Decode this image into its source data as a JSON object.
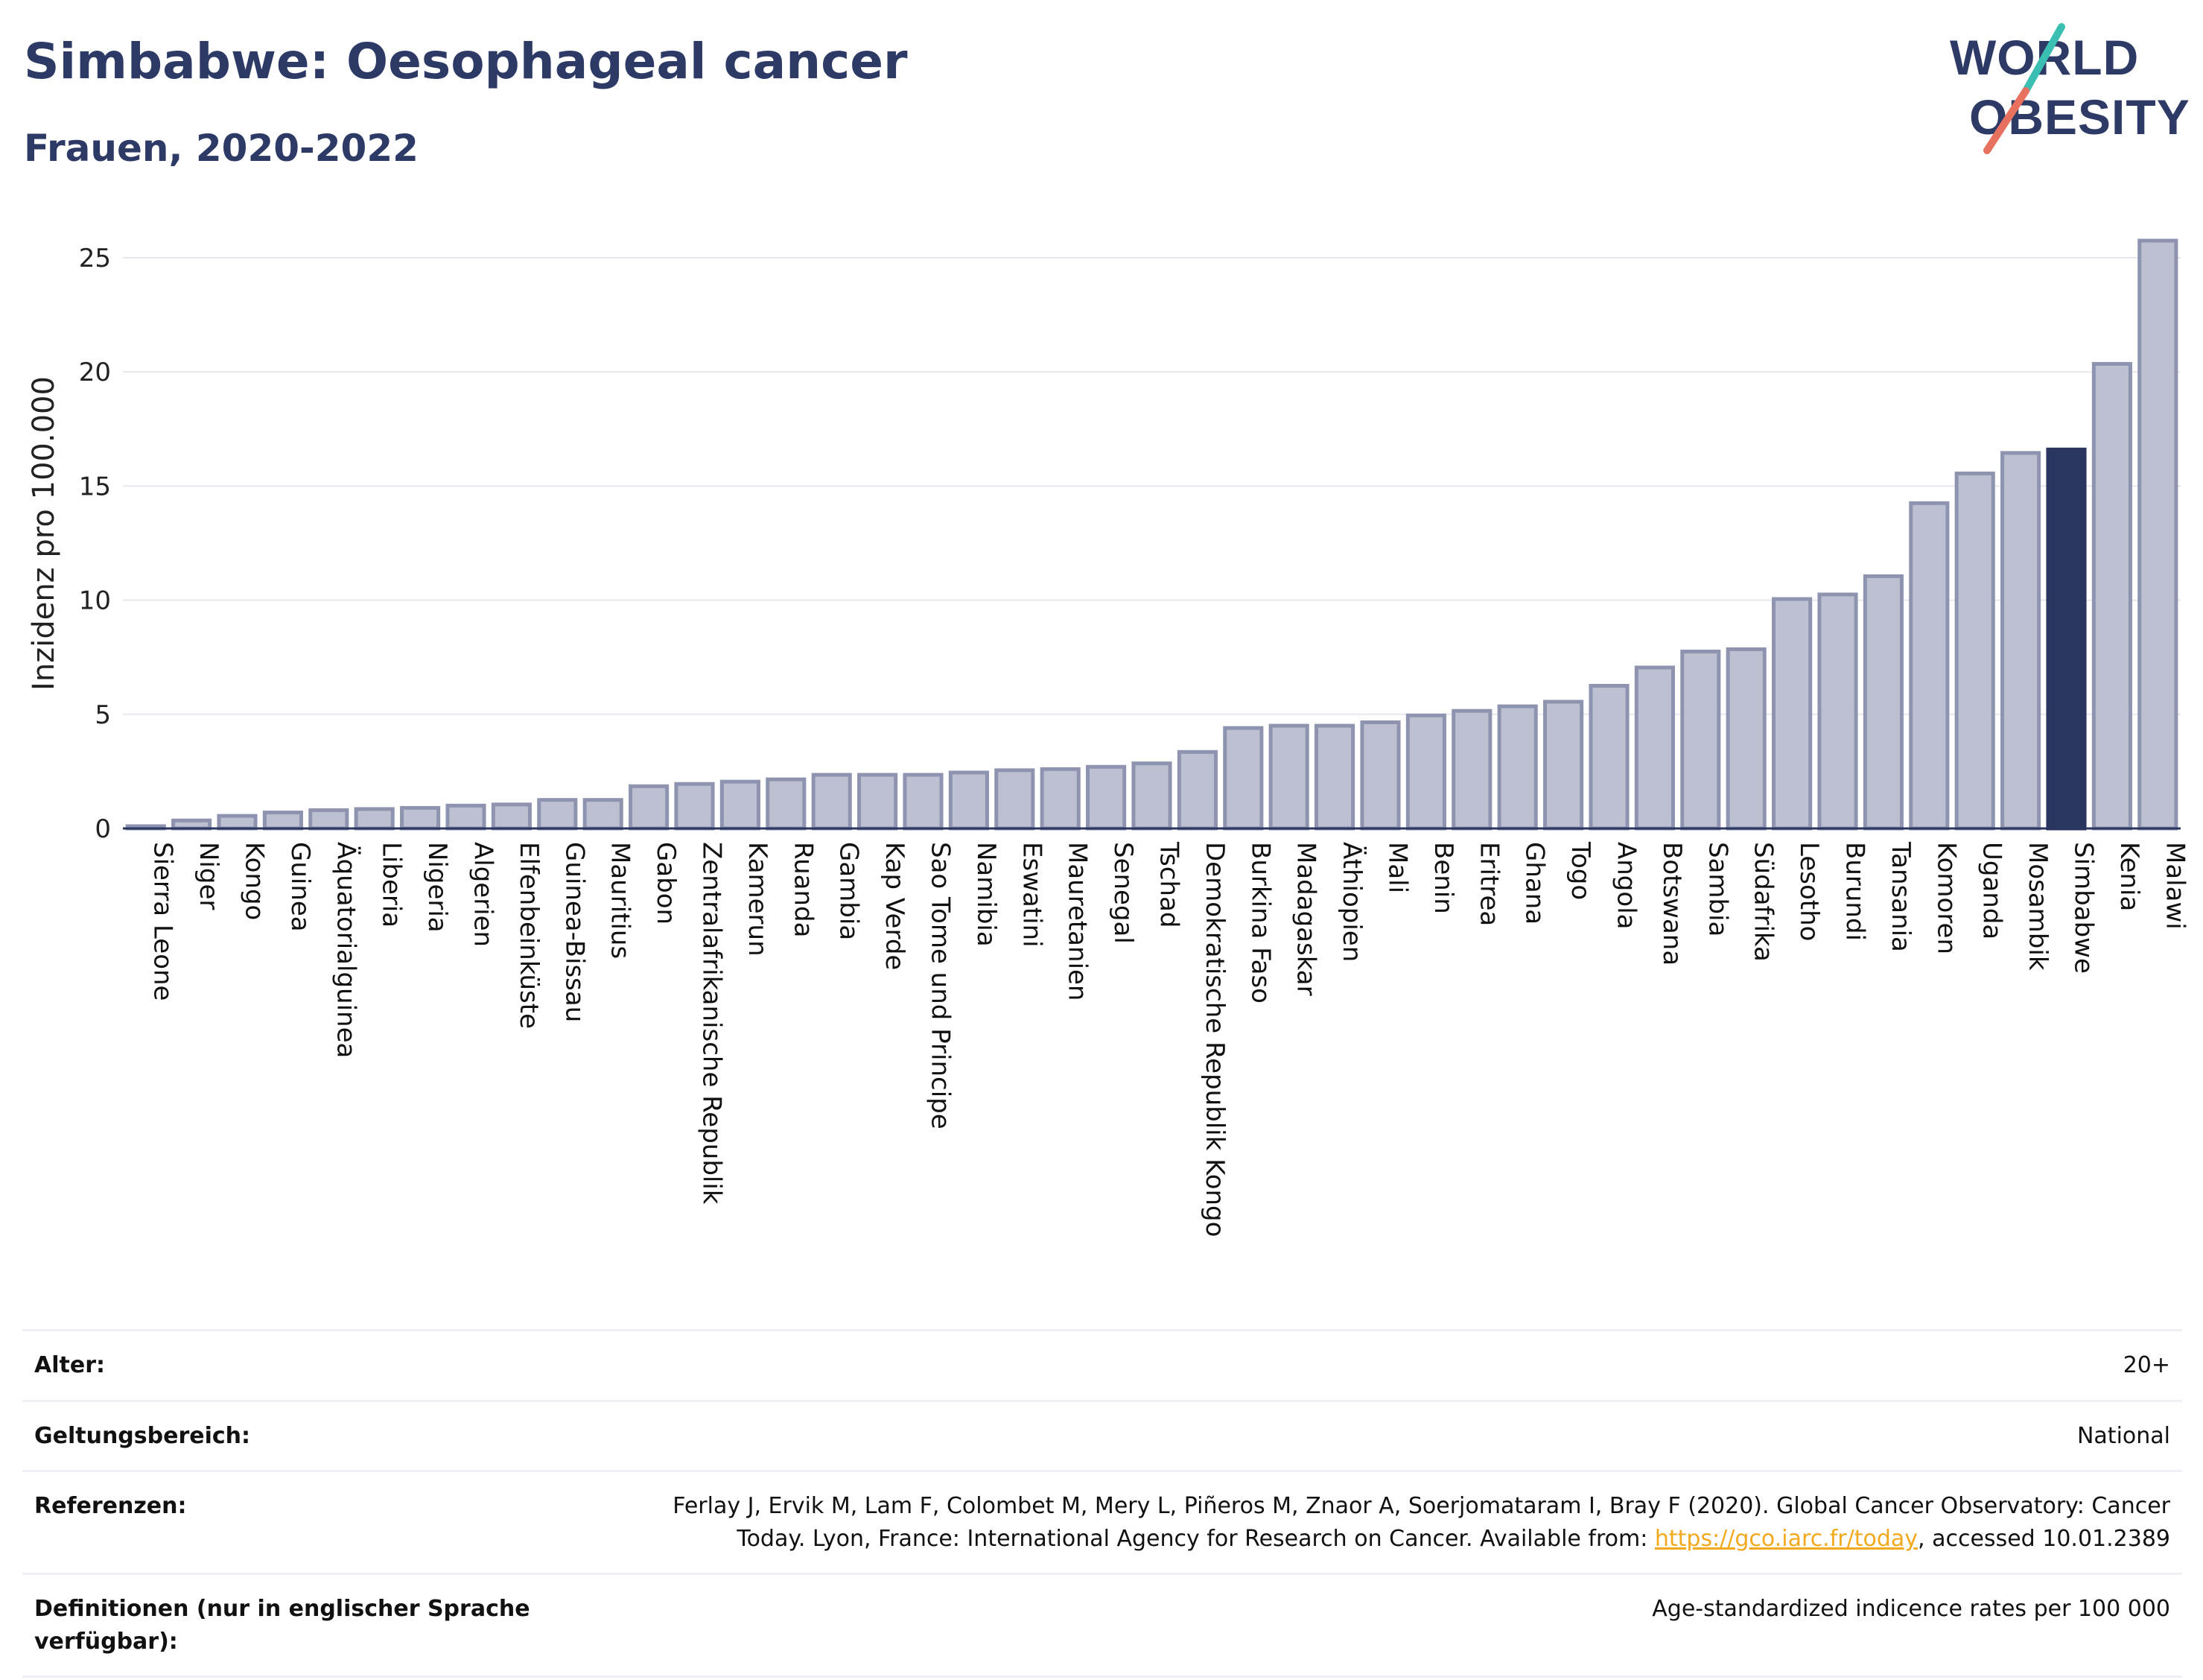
{
  "title": "Simbabwe: Oesophageal cancer",
  "subtitle": "Frauen, 2020-2022",
  "logo": {
    "line1": "WORLD",
    "line2": "OBESITY",
    "colors": {
      "text": "#2d3a66",
      "slash_top": "#3bbfb3",
      "slash_bottom": "#e8705f"
    }
  },
  "colors": {
    "bar_fill": "#bcc0d0",
    "bar_stroke": "#8e94b0",
    "highlight_fill": "#2a3560",
    "grid": "#e6e8ef",
    "axis": "#2a3560"
  },
  "chart_data": {
    "type": "bar",
    "ylabel": "Inzidenz pro 100.000",
    "xlabel": "",
    "ylim": [
      0,
      26.5
    ],
    "yticks": [
      0,
      5,
      10,
      15,
      20,
      25
    ],
    "grid": true,
    "highlight": "Simbabwe",
    "categories": [
      "Sierra Leone",
      "Niger",
      "Kongo",
      "Guinea",
      "Äquatorialguinea",
      "Liberia",
      "Nigeria",
      "Algerien",
      "Elfenbeinküste",
      "Guinea-Bissau",
      "Mauritius",
      "Gabon",
      "Zentralafrikanische Republik",
      "Kamerun",
      "Ruanda",
      "Gambia",
      "Kap Verde",
      "Sao Tome und Principe",
      "Namibia",
      "Eswatini",
      "Mauretanien",
      "Senegal",
      "Tschad",
      "Demokratische Republik Kongo",
      "Burkina Faso",
      "Madagaskar",
      "Äthiopien",
      "Mali",
      "Benin",
      "Eritrea",
      "Ghana",
      "Togo",
      "Angola",
      "Botswana",
      "Sambia",
      "Südafrika",
      "Lesotho",
      "Burundi",
      "Tansania",
      "Komoren",
      "Uganda",
      "Mosambik",
      "Simbabwe",
      "Kenia",
      "Malawi"
    ],
    "values": [
      0.1,
      0.35,
      0.55,
      0.7,
      0.8,
      0.85,
      0.9,
      1.0,
      1.05,
      1.25,
      1.25,
      1.85,
      1.95,
      2.05,
      2.15,
      2.35,
      2.35,
      2.35,
      2.45,
      2.55,
      2.6,
      2.7,
      2.85,
      3.35,
      4.4,
      4.5,
      4.5,
      4.65,
      4.95,
      5.15,
      5.35,
      5.55,
      6.25,
      7.05,
      7.75,
      7.85,
      10.05,
      10.25,
      11.05,
      14.25,
      15.55,
      16.45,
      16.6,
      20.35,
      25.75
    ]
  },
  "info": {
    "age_label": "Alter:",
    "age_value": "20+",
    "scope_label": "Geltungsbereich:",
    "scope_value": "National",
    "ref_label": "Referenzen:",
    "ref_line1": "Ferlay J, Ervik M, Lam F, Colombet M, Mery L, Piñeros M, Znaor A, Soerjomataram I, Bray F (2020). Global Cancer Observatory: Cancer",
    "ref_line2_pre": "Today. Lyon, France: International Agency for Research on Cancer. Available from: ",
    "ref_link": "https://gco.iarc.fr/today",
    "ref_line2_post": ", accessed 10.01.2389",
    "def_label": "Definitionen (nur in englischer Sprache verfügbar):",
    "def_value": "Age-standardized indicence rates per 100 000"
  }
}
